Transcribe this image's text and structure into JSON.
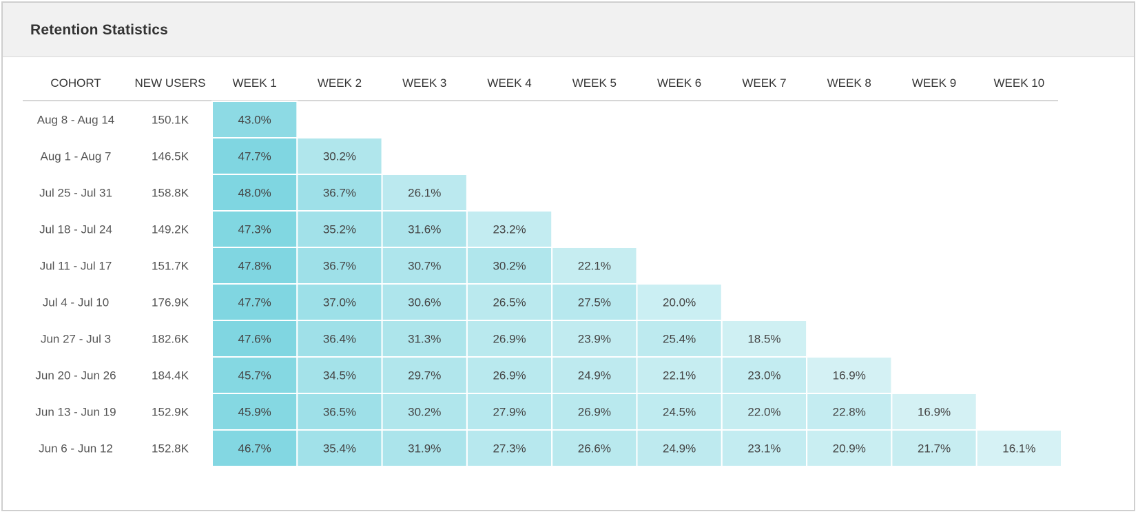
{
  "title": "Retention Statistics",
  "chart_data": {
    "type": "heatmap",
    "columns": [
      "COHORT",
      "NEW USERS",
      "WEEK 1",
      "WEEK 2",
      "WEEK 3",
      "WEEK 4",
      "WEEK 5",
      "WEEK 6",
      "WEEK 7",
      "WEEK 8",
      "WEEK 9",
      "WEEK 10"
    ],
    "rows": [
      {
        "cohort": "Aug 8 - Aug 14",
        "new_users": "150.1K",
        "values": [
          43.0
        ]
      },
      {
        "cohort": "Aug 1 - Aug 7",
        "new_users": "146.5K",
        "values": [
          47.7,
          30.2
        ]
      },
      {
        "cohort": "Jul 25 - Jul 31",
        "new_users": "158.8K",
        "values": [
          48.0,
          36.7,
          26.1
        ]
      },
      {
        "cohort": "Jul 18 - Jul 24",
        "new_users": "149.2K",
        "values": [
          47.3,
          35.2,
          31.6,
          23.2
        ]
      },
      {
        "cohort": "Jul 11 - Jul 17",
        "new_users": "151.7K",
        "values": [
          47.8,
          36.7,
          30.7,
          30.2,
          22.1
        ]
      },
      {
        "cohort": "Jul 4 - Jul 10",
        "new_users": "176.9K",
        "values": [
          47.7,
          37.0,
          30.6,
          26.5,
          27.5,
          20.0
        ]
      },
      {
        "cohort": "Jun 27 - Jul 3",
        "new_users": "182.6K",
        "values": [
          47.6,
          36.4,
          31.3,
          26.9,
          23.9,
          25.4,
          18.5
        ]
      },
      {
        "cohort": "Jun 20 - Jun 26",
        "new_users": "184.4K",
        "values": [
          45.7,
          34.5,
          29.7,
          26.9,
          24.9,
          22.1,
          23.0,
          16.9
        ]
      },
      {
        "cohort": "Jun 13 - Jun 19",
        "new_users": "152.9K",
        "values": [
          45.9,
          36.5,
          30.2,
          27.9,
          26.9,
          24.5,
          22.0,
          22.8,
          16.9
        ]
      },
      {
        "cohort": "Jun 6 - Jun 12",
        "new_users": "152.8K",
        "values": [
          46.7,
          35.4,
          31.9,
          27.3,
          26.6,
          24.9,
          23.1,
          20.9,
          21.7,
          16.1
        ]
      }
    ],
    "value_suffix": "%",
    "color_scale": {
      "low": "#d6f2f5",
      "high": "#7fd6e1"
    }
  }
}
